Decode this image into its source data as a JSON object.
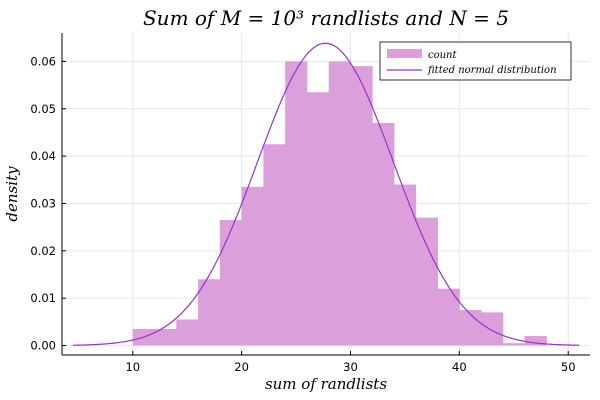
{
  "chart_data": {
    "type": "bar",
    "title": "Sum of M = 10³ randlists and N = 5",
    "xlabel": "sum of randlists",
    "ylabel": "density",
    "xlim": [
      3.5,
      52
    ],
    "ylim": [
      -0.002,
      0.066
    ],
    "x_ticks": [
      10,
      20,
      30,
      40,
      50
    ],
    "y_ticks": [
      0.0,
      0.01,
      0.02,
      0.03,
      0.04,
      0.05,
      0.06
    ],
    "y_tick_labels": [
      "0.00",
      "0.01",
      "0.02",
      "0.03",
      "0.04",
      "0.05",
      "0.06"
    ],
    "grid": true,
    "legend_position": "top-right",
    "series": [
      {
        "name": "count",
        "kind": "histogram",
        "color": "#db9fdc",
        "bin_edges": [
          10,
          12,
          14,
          16,
          18,
          20,
          22,
          24,
          26,
          28,
          30,
          32,
          34,
          36,
          38,
          40,
          42,
          44,
          46,
          48
        ],
        "values": [
          0.0035,
          0.0035,
          0.0055,
          0.014,
          0.0265,
          0.0335,
          0.0425,
          0.06,
          0.0535,
          0.06,
          0.059,
          0.047,
          0.034,
          0.027,
          0.012,
          0.0075,
          0.007,
          0.0005,
          0.002
        ]
      },
      {
        "name": "fitted normal distribution",
        "kind": "line",
        "color": "#9b30c8",
        "mean": 27.7,
        "sd": 6.25,
        "x_range": [
          4.5,
          51
        ]
      }
    ]
  }
}
